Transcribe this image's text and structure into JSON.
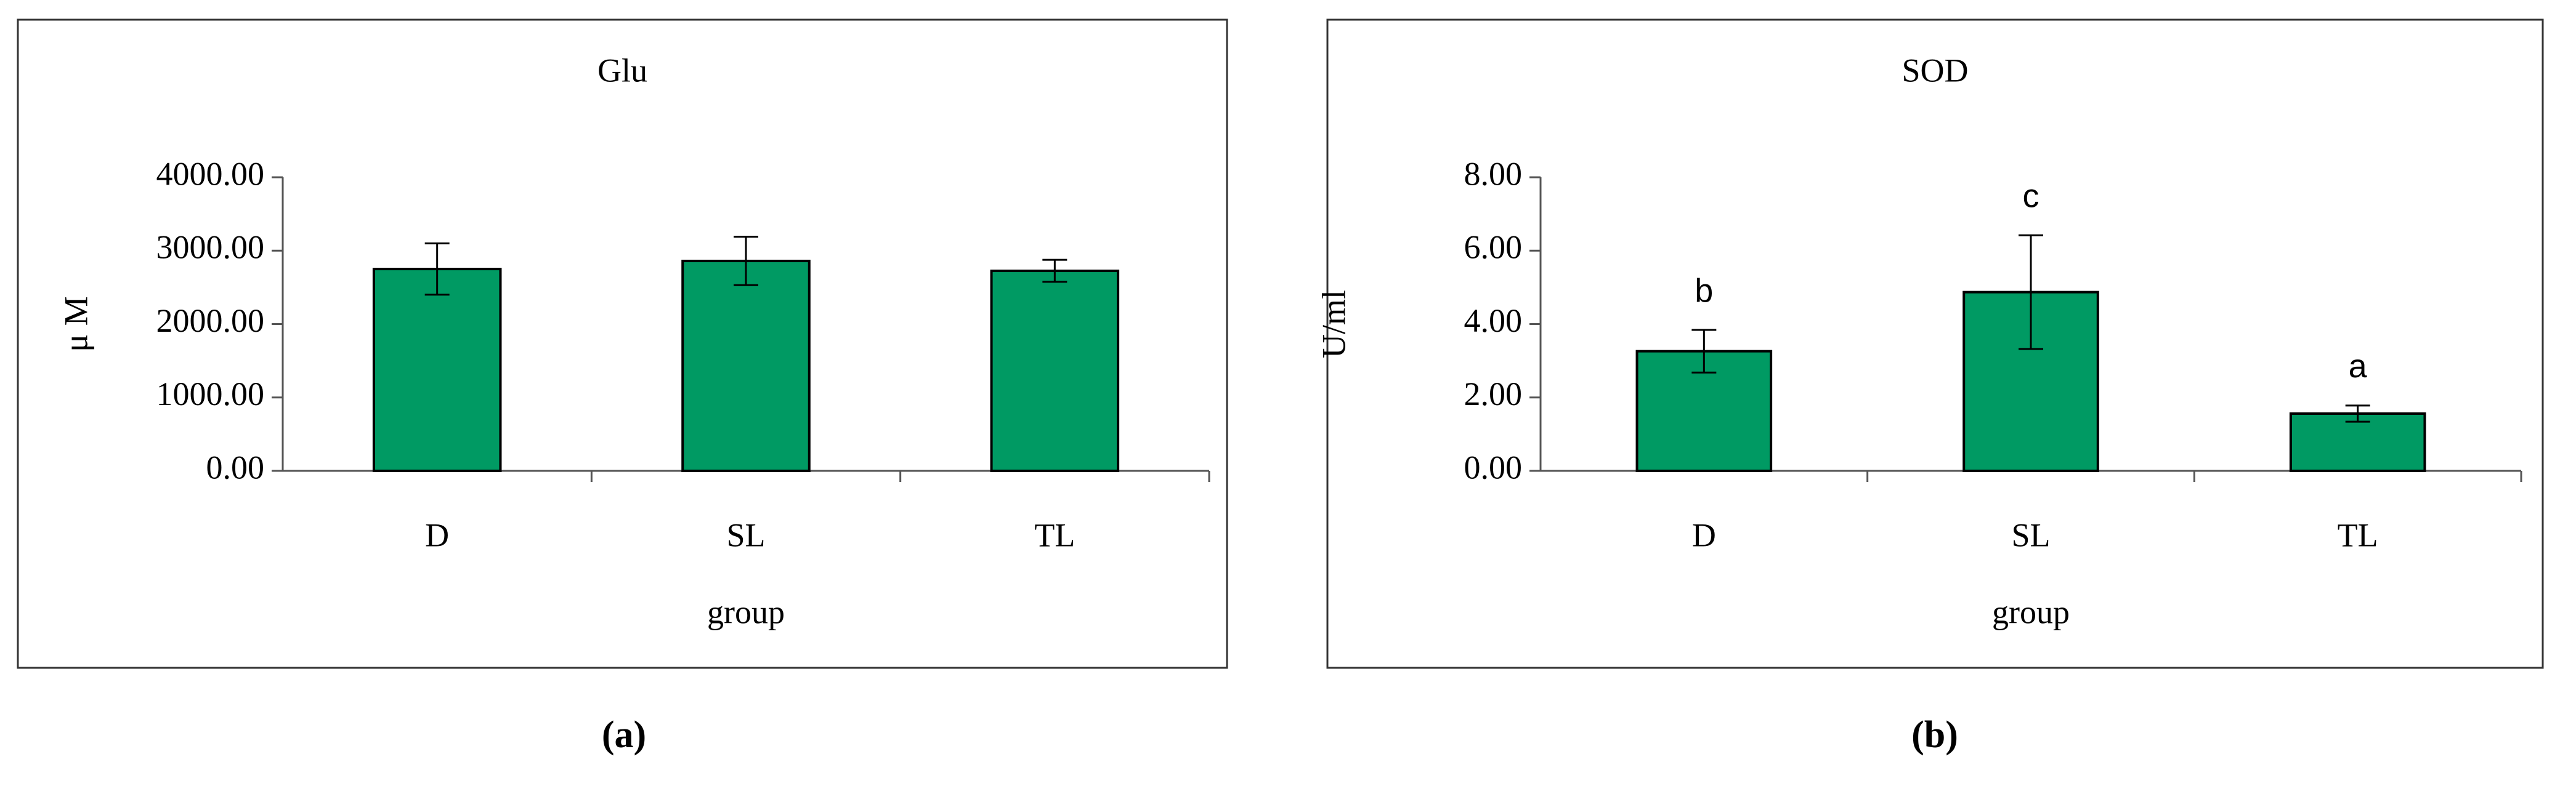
{
  "chart_data": [
    {
      "type": "bar",
      "title": "Glu",
      "x_label": "group",
      "y_label": "μ M",
      "panel_label": "(a)",
      "categories": [
        "D",
        "SL",
        "TL"
      ],
      "series": [
        {
          "color": "#009a63",
          "values": [
            2750,
            2860,
            2725
          ],
          "errors": [
            350,
            330,
            150
          ]
        }
      ],
      "ylim": [
        0,
        4000
      ],
      "yticks": [
        {
          "value": 0,
          "label": "0.00"
        },
        {
          "value": 1000,
          "label": "1000.00"
        },
        {
          "value": 2000,
          "label": "2000.00"
        },
        {
          "value": 3000,
          "label": "3000.00"
        },
        {
          "value": 4000,
          "label": "4000.00"
        }
      ]
    },
    {
      "type": "bar",
      "title": "SOD",
      "x_label": "group",
      "y_label": "U/ml",
      "panel_label": "(b)",
      "categories": [
        "D",
        "SL",
        "TL"
      ],
      "series": [
        {
          "color": "#009a63",
          "values": [
            3.26,
            4.87,
            1.56
          ],
          "errors": [
            0.58,
            1.55,
            0.22
          ]
        }
      ],
      "significance_labels": [
        "b",
        "c",
        "a"
      ],
      "ylim": [
        0,
        8
      ],
      "yticks": [
        {
          "value": 0,
          "label": "0.00"
        },
        {
          "value": 2,
          "label": "2.00"
        },
        {
          "value": 4,
          "label": "4.00"
        },
        {
          "value": 6,
          "label": "6.00"
        },
        {
          "value": 8,
          "label": "8.00"
        }
      ]
    }
  ]
}
